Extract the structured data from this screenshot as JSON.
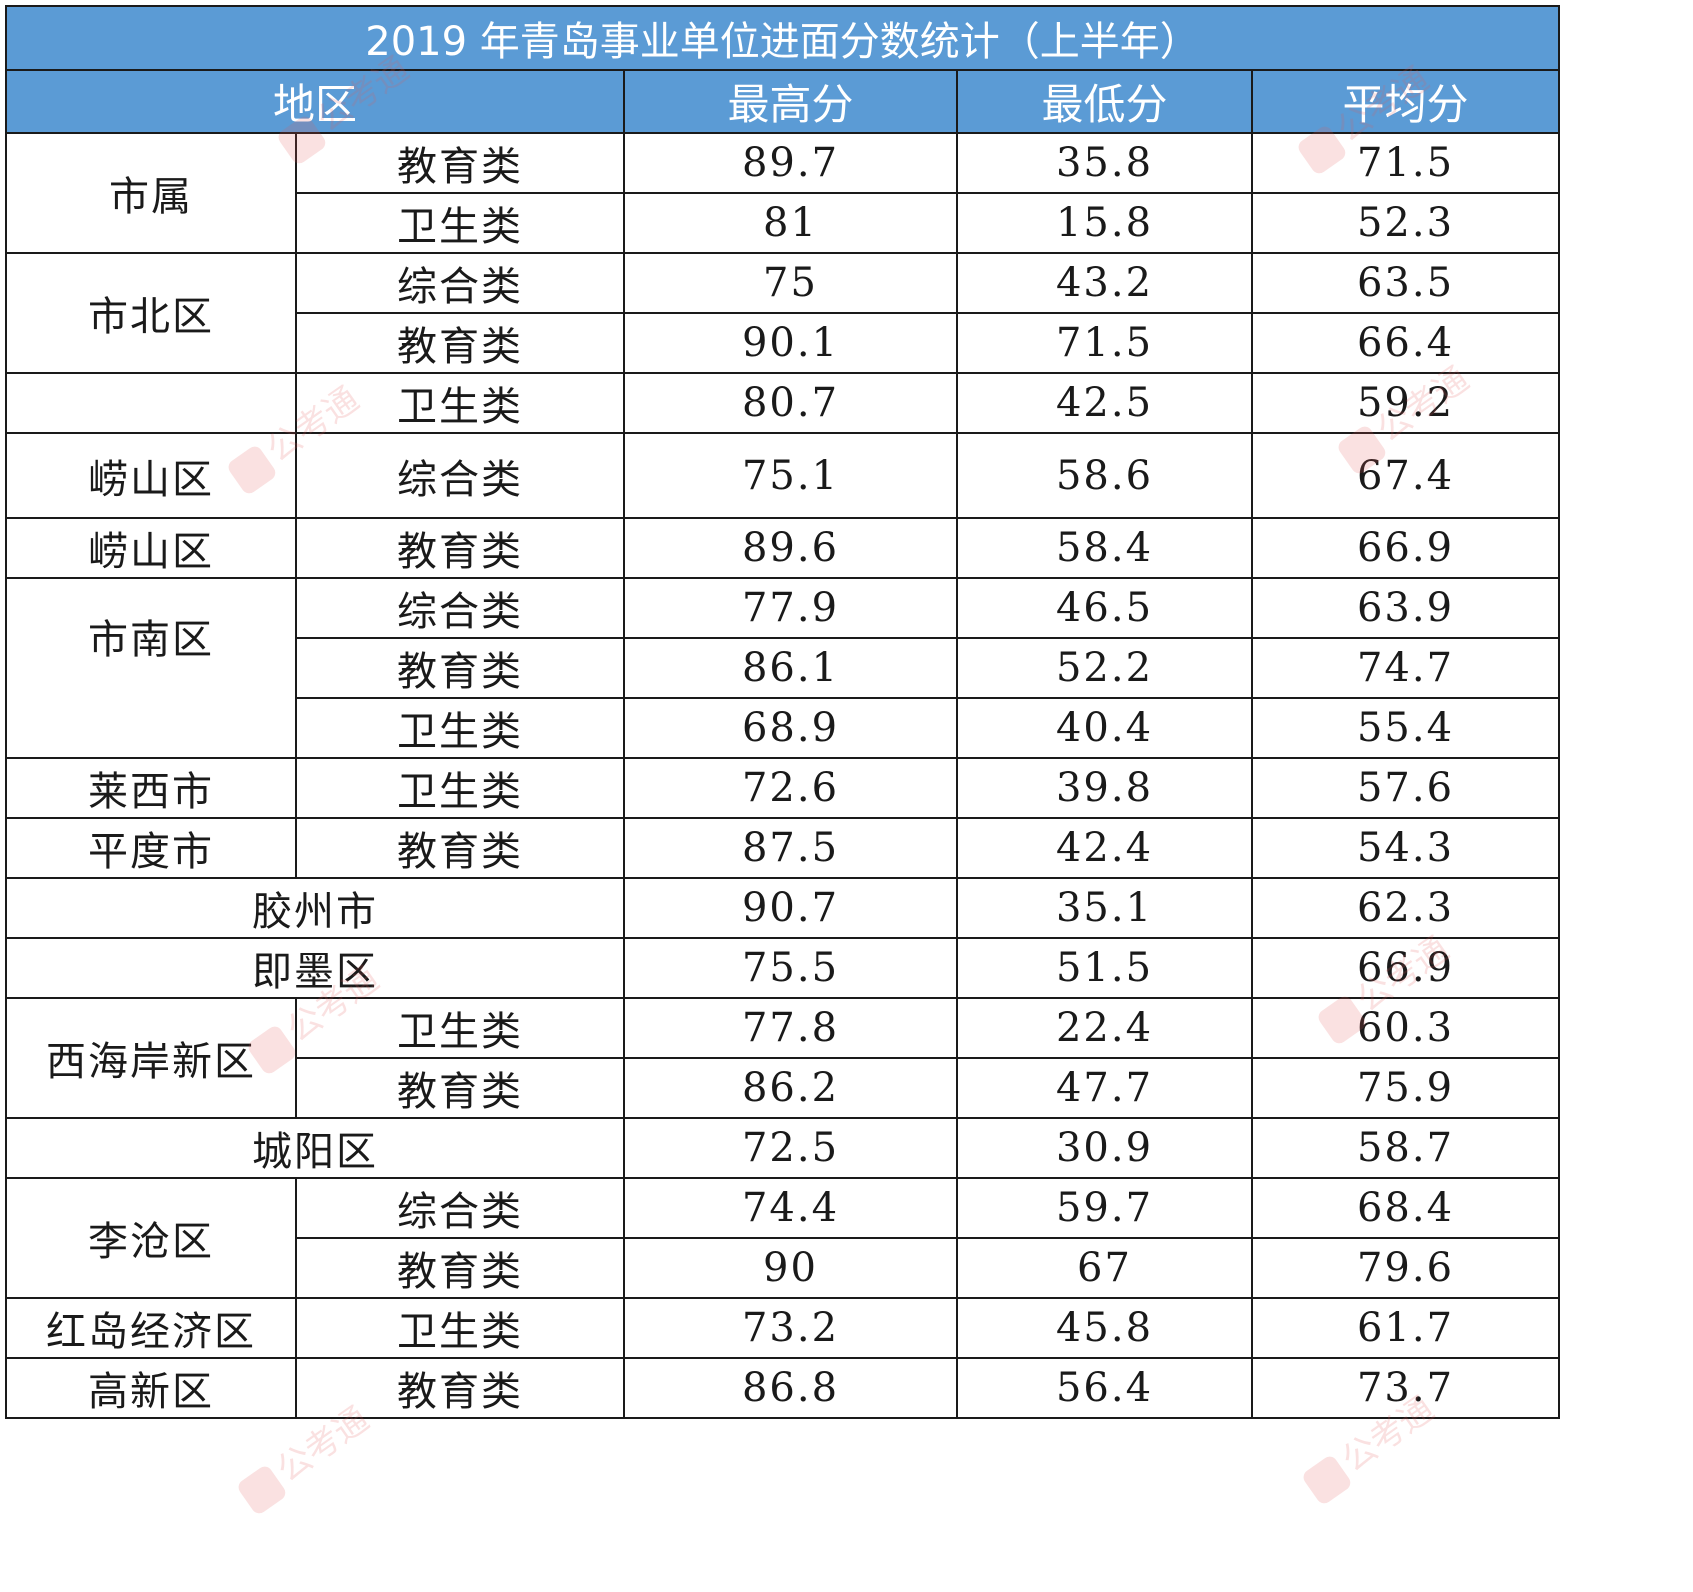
{
  "title": "2019 年青岛事业单位进面分数统计（上半年）",
  "headers": {
    "region": "地区",
    "max": "最高分",
    "min": "最低分",
    "avg": "平均分"
  },
  "rows": [
    {
      "region": "市属",
      "category": "教育类",
      "max": "89.7",
      "min": "35.8",
      "avg": "71.5"
    },
    {
      "region": "",
      "category": "卫生类",
      "max": "81",
      "min": "15.8",
      "avg": "52.3"
    },
    {
      "region": "市北区",
      "category": "综合类",
      "max": "75",
      "min": "43.2",
      "avg": "63.5"
    },
    {
      "region": "",
      "category": "教育类",
      "max": "90.1",
      "min": "71.5",
      "avg": "66.4"
    },
    {
      "region": "",
      "category": "卫生类",
      "max": "80.7",
      "min": "42.5",
      "avg": "59.2"
    },
    {
      "region": "崂山区",
      "category": "综合类",
      "max": "75.1",
      "min": "58.6",
      "avg": "67.4"
    },
    {
      "region": "崂山区",
      "category": "教育类",
      "max": "89.6",
      "min": "58.4",
      "avg": "66.9"
    },
    {
      "region": "市南区",
      "category": "综合类",
      "max": "77.9",
      "min": "46.5",
      "avg": "63.9"
    },
    {
      "region": "",
      "category": "教育类",
      "max": "86.1",
      "min": "52.2",
      "avg": "74.7"
    },
    {
      "region": "",
      "category": "卫生类",
      "max": "68.9",
      "min": "40.4",
      "avg": "55.4"
    },
    {
      "region": "莱西市",
      "category": "卫生类",
      "max": "72.6",
      "min": "39.8",
      "avg": "57.6"
    },
    {
      "region": "平度市",
      "category": "教育类",
      "max": "87.5",
      "min": "42.4",
      "avg": "54.3"
    },
    {
      "region": "胶州市",
      "category": "",
      "max": "90.7",
      "min": "35.1",
      "avg": "62.3"
    },
    {
      "region": "即墨区",
      "category": "",
      "max": "75.5",
      "min": "51.5",
      "avg": "66.9"
    },
    {
      "region": "西海岸新区",
      "category": "卫生类",
      "max": "77.8",
      "min": "22.4",
      "avg": "60.3"
    },
    {
      "region": "",
      "category": "教育类",
      "max": "86.2",
      "min": "47.7",
      "avg": "75.9"
    },
    {
      "region": "城阳区",
      "category": "",
      "max": "72.5",
      "min": "30.9",
      "avg": "58.7"
    },
    {
      "region": "李沧区",
      "category": "综合类",
      "max": "74.4",
      "min": "59.7",
      "avg": "68.4"
    },
    {
      "region": "",
      "category": "教育类",
      "max": "90",
      "min": "67",
      "avg": "79.6"
    },
    {
      "region": "红岛经济区",
      "category": "卫生类",
      "max": "73.2",
      "min": "45.8",
      "avg": "61.7"
    },
    {
      "region": "高新区",
      "category": "教育类",
      "max": "86.8",
      "min": "56.4",
      "avg": "73.7"
    }
  ],
  "watermark": "公考通",
  "colors": {
    "header_bg": "#5b9bd5",
    "header_text": "#ffffff"
  }
}
